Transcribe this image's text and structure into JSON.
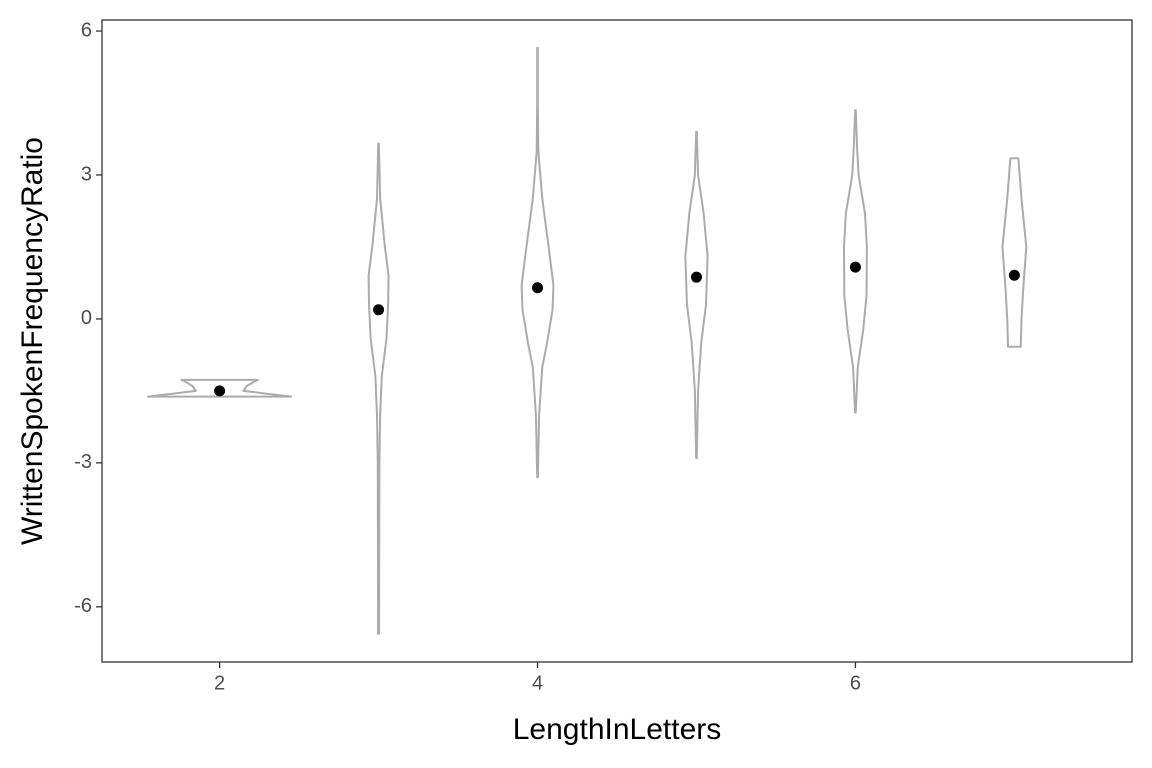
{
  "chart_data": {
    "type": "violin",
    "x_label": "LengthInLetters",
    "y_label": "WrittenSpokenFrequencyRatio",
    "xlim": [
      1.26,
      7.74
    ],
    "ylim": [
      -7.15,
      6.23
    ],
    "xticks": [
      2,
      4,
      6
    ],
    "yticks": [
      6,
      3,
      0,
      -3,
      -6
    ],
    "grid": false,
    "violin_color": "#ababab",
    "mean_color": "#000000",
    "violins": [
      {
        "x": 2,
        "mean": -1.5,
        "y": [
          -1.62,
          -1.58,
          -1.5,
          -1.4,
          -1.3,
          -1.27
        ],
        "half_width": [
          0.45,
          0.35,
          0.15,
          0.17,
          0.22,
          0.24
        ]
      },
      {
        "x": 3,
        "mean": 0.19,
        "y": [
          -6.56,
          -3,
          -2,
          -1.2,
          -0.4,
          0.3,
          0.9,
          1.5,
          2.5,
          3.65
        ],
        "half_width": [
          0.003,
          0.005,
          0.01,
          0.02,
          0.05,
          0.06,
          0.063,
          0.04,
          0.01,
          0.002
        ]
      },
      {
        "x": 4,
        "mean": 0.65,
        "y": [
          -3.3,
          -2,
          -1,
          -0.5,
          0.2,
          0.7,
          1.5,
          2.5,
          3.5,
          4.5,
          5.65
        ],
        "half_width": [
          0.002,
          0.01,
          0.03,
          0.06,
          0.095,
          0.1,
          0.07,
          0.03,
          0.005,
          0.002,
          0.002
        ]
      },
      {
        "x": 5,
        "mean": 0.87,
        "y": [
          -2.9,
          -1.5,
          -0.5,
          0.3,
          1.3,
          2.2,
          3,
          3.9
        ],
        "half_width": [
          0.002,
          0.01,
          0.03,
          0.06,
          0.07,
          0.045,
          0.01,
          0.002
        ]
      },
      {
        "x": 6,
        "mean": 1.08,
        "y": [
          -1.95,
          -1,
          -0.2,
          0.5,
          1.5,
          2.2,
          3,
          3.6,
          4.35
        ],
        "half_width": [
          0.002,
          0.015,
          0.05,
          0.07,
          0.072,
          0.06,
          0.02,
          0.01,
          0.002
        ]
      },
      {
        "x": 7,
        "mean": 0.91,
        "y": [
          -0.58,
          0,
          0.6,
          1.5,
          2.5,
          3.35
        ],
        "half_width": [
          0.04,
          0.045,
          0.055,
          0.075,
          0.045,
          0.025
        ]
      }
    ]
  }
}
